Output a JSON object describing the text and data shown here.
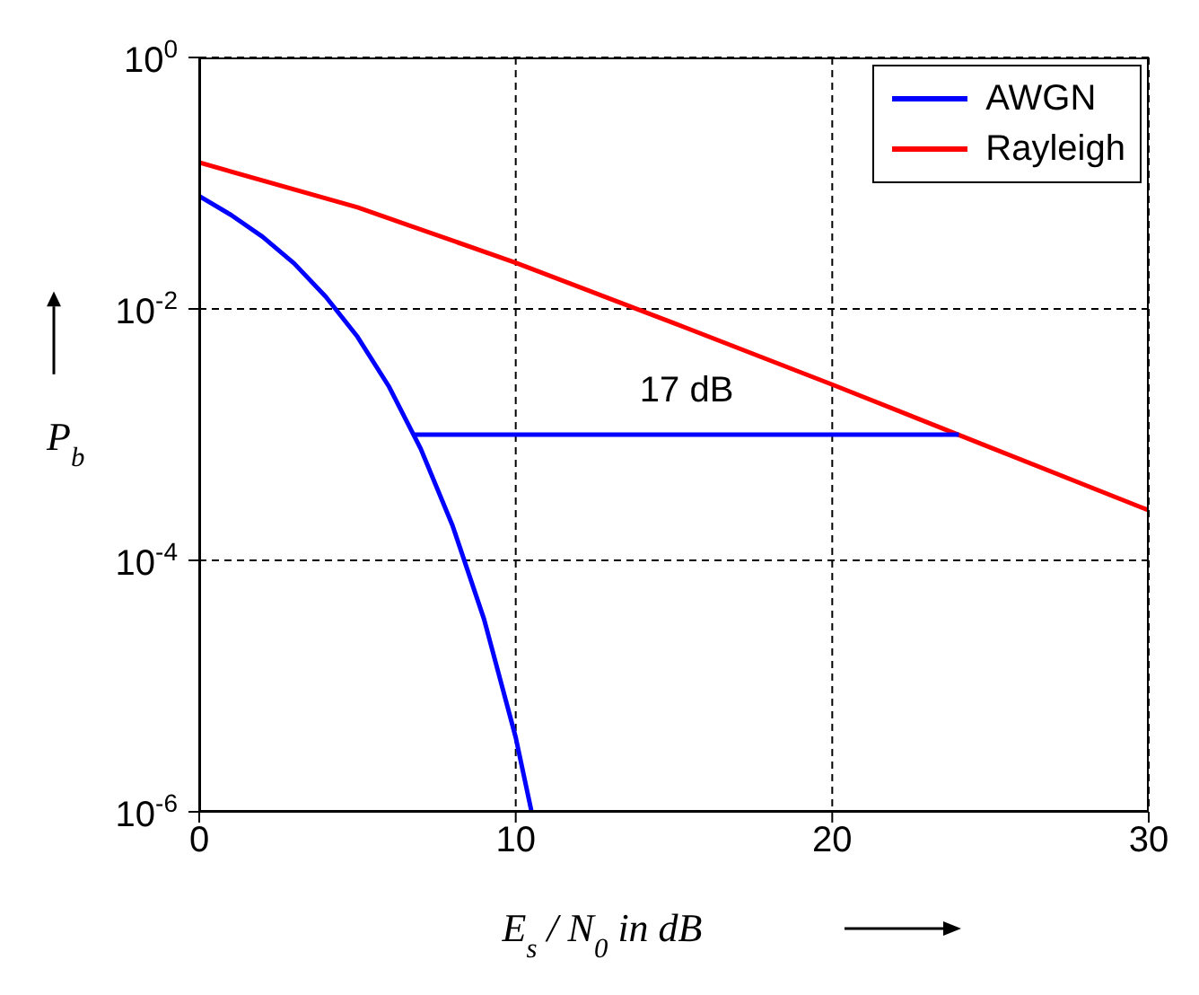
{
  "chart_data": {
    "type": "line",
    "xlabel": "E$_{s}$ / N$_{0}$ in dB",
    "ylabel": "P$_{b}$",
    "log": "y",
    "xlim": [
      0,
      30
    ],
    "xticks": [
      0,
      10,
      20,
      30
    ],
    "ylim": [
      1e-06,
      1
    ],
    "yticks": [
      {
        "value": 1,
        "label": "10$^{0}$"
      },
      {
        "value": 0.01,
        "label": "10$^{-2}$"
      },
      {
        "value": 0.0001,
        "label": "10$^{-4}$"
      },
      {
        "value": 1e-06,
        "label": "10$^{-6}$"
      }
    ],
    "grid": true,
    "legend": "top right",
    "marker": "none",
    "line_style": "solid",
    "series": [
      {
        "name": "AWGN",
        "color": "#0000ff",
        "x": [
          0,
          1,
          2,
          3,
          4,
          5,
          6,
          7,
          8,
          9,
          10,
          10.5
        ],
        "values": [
          0.079,
          0.056,
          0.0375,
          0.023,
          0.0125,
          0.006,
          0.0024,
          0.00077,
          0.00019,
          3.4e-05,
          3.9e-06,
          1e-06
        ]
      },
      {
        "name": "Rayleigh",
        "color": "#ff0000",
        "x": [
          0,
          5,
          10,
          15,
          20,
          25,
          30
        ],
        "values": [
          0.146,
          0.0642,
          0.0233,
          0.0077,
          0.0025,
          0.00079,
          0.00025
        ]
      },
      {
        "color": "#0000ff",
        "x": [
          6.8,
          24
        ],
        "values": [
          0.001,
          0.001
        ]
      }
    ],
    "annotations": [
      "17 dB"
    ]
  }
}
